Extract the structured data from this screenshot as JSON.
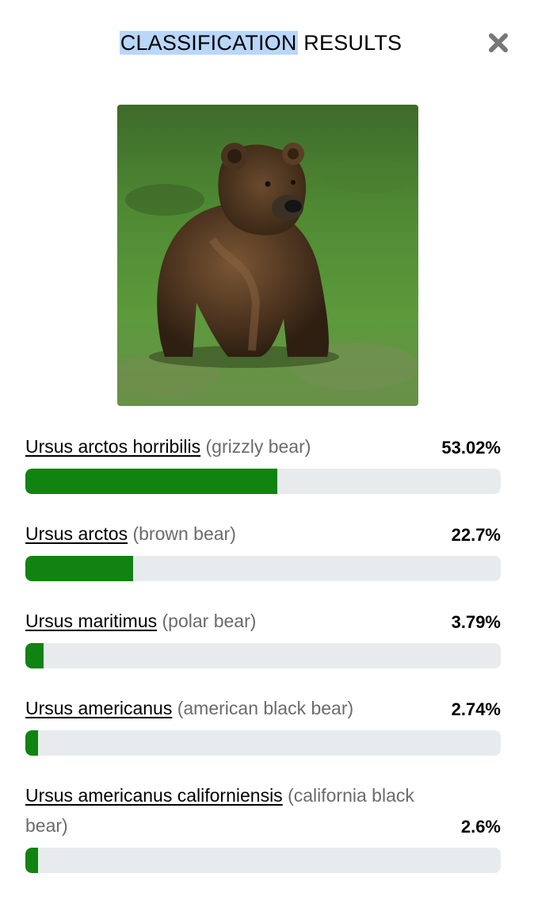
{
  "dialog": {
    "title_highlight": "CLASSIFICATION",
    "title_rest": "RESULTS",
    "close_icon": "close-icon"
  },
  "image": {
    "subject": "bear-photo"
  },
  "colors": {
    "bar_fill": "#118311",
    "bar_track": "#e8ebed",
    "highlight": "#b9d6fb"
  },
  "results": [
    {
      "scientific": "Ursus arctos horribilis",
      "common": "(grizzly bear)",
      "percent_label": "53.02%",
      "percent": 53.02
    },
    {
      "scientific": "Ursus arctos",
      "common": "(brown bear)",
      "percent_label": "22.7%",
      "percent": 22.7
    },
    {
      "scientific": "Ursus maritimus",
      "common": "(polar bear)",
      "percent_label": "3.79%",
      "percent": 3.79
    },
    {
      "scientific": "Ursus americanus",
      "common": "(american black bear)",
      "percent_label": "2.74%",
      "percent": 2.74
    },
    {
      "scientific": "Ursus americanus californiensis",
      "common": "(california black bear)",
      "percent_label": "2.6%",
      "percent": 2.6
    }
  ]
}
